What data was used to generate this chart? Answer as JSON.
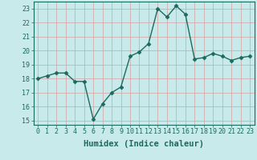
{
  "x": [
    0,
    1,
    2,
    3,
    4,
    5,
    6,
    7,
    8,
    9,
    10,
    11,
    12,
    13,
    14,
    15,
    16,
    17,
    18,
    19,
    20,
    21,
    22,
    23
  ],
  "y": [
    18.0,
    18.2,
    18.4,
    18.4,
    17.8,
    17.8,
    15.1,
    16.2,
    17.0,
    17.4,
    19.6,
    19.9,
    20.5,
    23.0,
    22.4,
    23.2,
    22.6,
    19.4,
    19.5,
    19.8,
    19.6,
    19.3,
    19.5,
    19.6
  ],
  "line_color": "#1a6b5e",
  "bg_color": "#c8eaea",
  "grid_color": "#d4a0a0",
  "xlabel": "Humidex (Indice chaleur)",
  "ylim": [
    14.7,
    23.5
  ],
  "xlim": [
    -0.5,
    23.5
  ],
  "yticks": [
    15,
    16,
    17,
    18,
    19,
    20,
    21,
    22,
    23
  ],
  "xticks": [
    0,
    1,
    2,
    3,
    4,
    5,
    6,
    7,
    8,
    9,
    10,
    11,
    12,
    13,
    14,
    15,
    16,
    17,
    18,
    19,
    20,
    21,
    22,
    23
  ],
  "text_color": "#1a6b5e",
  "marker": "D",
  "markersize": 2.5,
  "linewidth": 1.0,
  "xlabel_fontsize": 7.5,
  "tick_fontsize": 6.0
}
